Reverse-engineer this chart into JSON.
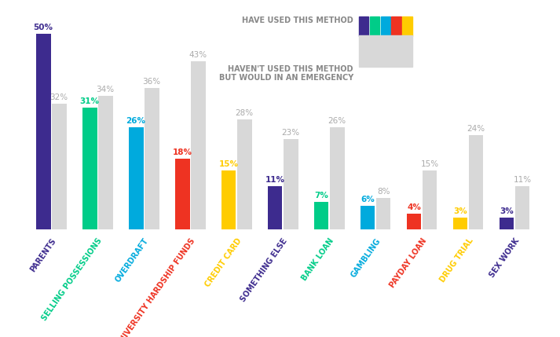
{
  "categories": [
    "PARENTS",
    "SELLING POSSESSIONS",
    "OVERDRAFT",
    "UNIVERSITY HARDSHIP FUNDS",
    "CREDIT CARD",
    "SOMETHING ELSE",
    "BANK LOAN",
    "GAMBLING",
    "PAYDAY LOAN",
    "DRUG TRIAL",
    "SEX WORK"
  ],
  "used": [
    50,
    31,
    26,
    18,
    15,
    11,
    7,
    6,
    4,
    3,
    3
  ],
  "emergency": [
    32,
    34,
    36,
    43,
    28,
    23,
    26,
    8,
    15,
    24,
    11
  ],
  "used_colors": [
    "#3d2b8e",
    "#00cc88",
    "#00aadd",
    "#ee3322",
    "#ffcc00",
    "#3d2b8e",
    "#00cc88",
    "#00aadd",
    "#ee3322",
    "#ffcc00",
    "#3d2b8e"
  ],
  "label_colors": [
    "#3d2b8e",
    "#00cc88",
    "#00aadd",
    "#ee3322",
    "#ffcc00",
    "#3d2b8e",
    "#00cc88",
    "#00aadd",
    "#ee3322",
    "#ffcc00",
    "#3d2b8e"
  ],
  "emergency_color": "#d8d8d8",
  "background_color": "#ffffff",
  "legend_used_label": "HAVE USED THIS METHOD",
  "legend_emergency_label": "HAVEN'T USED THIS METHOD\nBUT WOULD IN AN EMERGENCY",
  "legend_colors": [
    "#3d2b8e",
    "#00cc88",
    "#00aadd",
    "#ee3322",
    "#ffcc00"
  ],
  "bar_width": 0.32,
  "ylim": [
    0,
    56
  ],
  "figsize": [
    7.13,
    4.29
  ],
  "dpi": 100
}
